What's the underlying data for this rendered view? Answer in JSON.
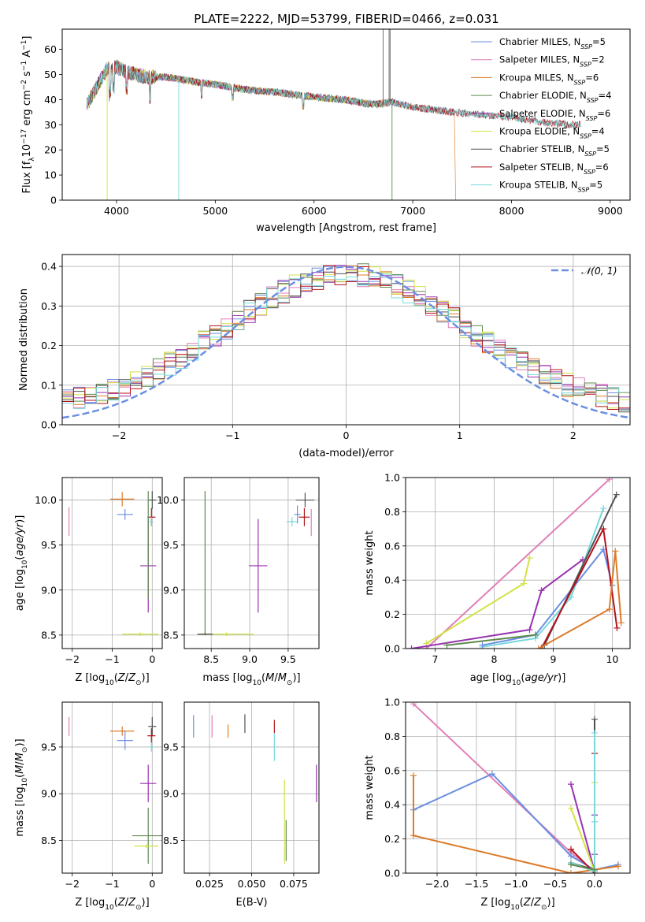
{
  "title": "PLATE=2222, MJD=53799, FIBERID=0466, z=0.031",
  "colors": {
    "Chabrier MILES": "#6b8fe0",
    "Salpeter MILES": "#e07fb8",
    "Kroupa MILES": "#dd7b28",
    "Chabrier ELODIE": "#5f8a4e",
    "Salpeter ELODIE": "#9832b0",
    "Kroupa ELODIE": "#d2e246",
    "Chabrier STELIB": "#505050",
    "Salpeter STELIB": "#b5121b",
    "Kroupa STELIB": "#78d8dc"
  },
  "chart_data": [
    {
      "type": "line",
      "id": "spectrum",
      "title": "PLATE=2222, MJD=53799, FIBERID=0466, z=0.031",
      "xlabel": "wavelength [Angstrom, rest frame]",
      "ylabel": "Flux [f_λ10^-17 erg cm^-2 s^-1 A^-1]",
      "xlim": [
        3450,
        9200
      ],
      "ylim": [
        0,
        68
      ],
      "xticks": [
        "4000",
        "5000",
        "6000",
        "7000",
        "8000",
        "9000"
      ],
      "yticks": [
        "0",
        "10",
        "20",
        "30",
        "40",
        "50",
        "60"
      ],
      "grid": false,
      "legend_position": "upper right",
      "legend": [
        {
          "name": "Chabrier MILES",
          "label": "Chabrier MILES, N",
          "nssp": "=5"
        },
        {
          "name": "Salpeter MILES",
          "label": "Salpeter MILES, N",
          "nssp": "=2"
        },
        {
          "name": "Kroupa MILES",
          "label": "Kroupa MILES, N",
          "nssp": "=6"
        },
        {
          "name": "Chabrier ELODIE",
          "label": "Chabrier ELODIE, N",
          "nssp": "=4"
        },
        {
          "name": "Salpeter ELODIE",
          "label": "Salpeter ELODIE, N",
          "nssp": "=6"
        },
        {
          "name": "Kroupa ELODIE",
          "label": "Kroupa ELODIE, N",
          "nssp": "=4"
        },
        {
          "name": "Chabrier STELIB",
          "label": "Chabrier STELIB, N",
          "nssp": "=5"
        },
        {
          "name": "Salpeter STELIB",
          "label": "Salpeter STELIB, N",
          "nssp": "=6"
        },
        {
          "name": "Kroupa STELIB",
          "label": "Kroupa STELIB, N",
          "nssp": "=5"
        }
      ],
      "continuum": {
        "x": [
          3700,
          3800,
          3900,
          4000,
          4100,
          4300,
          4500,
          4800,
          5000,
          5300,
          5600,
          6000,
          6300,
          6600,
          6800,
          7000,
          7200,
          7400,
          7700,
          8000,
          8300,
          8600,
          8700
        ],
        "y": [
          38,
          45,
          52,
          53,
          51,
          49,
          49,
          47,
          46,
          44,
          43,
          41,
          40,
          38,
          39,
          37,
          36,
          35,
          34,
          33,
          31,
          30,
          30
        ]
      },
      "end_wavelengths": {
        "MILES": 7420,
        "ELODIE": 6800,
        "STELIB": 8700
      }
    },
    {
      "type": "step",
      "id": "residual-histogram",
      "xlabel": "(data-model)/error",
      "ylabel": "Normed distribution",
      "xlim": [
        -2.5,
        2.5
      ],
      "ylim": [
        0,
        0.43
      ],
      "xticks": [
        "−2",
        "−1",
        "0",
        "1",
        "2"
      ],
      "yticks": [
        "0.0",
        "0.1",
        "0.2",
        "0.3",
        "0.4"
      ],
      "grid": true,
      "bins": 50,
      "legend": "𝒩(0, 1)",
      "legend_position": "upper right",
      "normal_curve": {
        "mean": 0,
        "sigma": 1,
        "color": "#6b8fe0"
      }
    },
    {
      "type": "errorbar",
      "id": "age-vs-Z",
      "xlabel": "Z [log10(Z/Z⊙)]",
      "ylabel": "age [log10(age/yr)]",
      "xlim": [
        -2.25,
        0.25
      ],
      "ylim": [
        8.35,
        10.25
      ],
      "xticks": [
        "−2",
        "−1",
        "0"
      ],
      "yticks": [
        "8.5",
        "9.0",
        "9.5",
        "10.0"
      ],
      "grid": true,
      "points": [
        {
          "model": "Salpeter MILES",
          "x": -2.08,
          "y": 9.76,
          "xerr": 0,
          "yerr": 0.16
        },
        {
          "model": "Kroupa MILES",
          "x": -0.75,
          "y": 10.01,
          "xerr": 0.3,
          "yerr": 0.08
        },
        {
          "model": "Chabrier MILES",
          "x": -0.68,
          "y": 9.84,
          "xerr": 0.2,
          "yerr": 0.06
        },
        {
          "model": "Chabrier STELIB",
          "x": 0.0,
          "y": 10.0,
          "xerr": 0.1,
          "yerr": 0.1
        },
        {
          "model": "Salpeter STELIB",
          "x": -0.02,
          "y": 9.81,
          "xerr": 0.1,
          "yerr": 0.1
        },
        {
          "model": "Kroupa STELIB",
          "x": -0.02,
          "y": 9.76,
          "xerr": 0.05,
          "yerr": 0.05
        },
        {
          "model": "Salpeter ELODIE",
          "x": -0.1,
          "y": 9.27,
          "xerr": 0.2,
          "yerr": 0.52
        },
        {
          "model": "Chabrier ELODIE",
          "x": -0.1,
          "y": 9.5,
          "xerr": 0.01,
          "yerr": 0.6
        },
        {
          "model": "Kroupa ELODIE",
          "x": -0.3,
          "y": 8.51,
          "xerr": 0.45,
          "yerr": 0.02
        }
      ]
    },
    {
      "type": "errorbar",
      "id": "age-vs-mass",
      "xlabel": "mass [log10(M/M⊙)]",
      "ylabel": "",
      "xlim": [
        8.15,
        9.9
      ],
      "ylim": [
        8.35,
        10.25
      ],
      "xticks": [
        "8.5",
        "9.0",
        "9.5"
      ],
      "yticks": [
        "8.5",
        "9.0",
        "9.5",
        "10.0"
      ],
      "grid": true,
      "points": [
        {
          "model": "Chabrier ELODIE",
          "x": 8.42,
          "y": 9.3,
          "xerr": 0,
          "yerr": 0.8
        },
        {
          "model": "Kroupa ELODIE",
          "x": 8.7,
          "y": 8.51,
          "xerr": 0.35,
          "yerr": 0.02
        },
        {
          "model": "Chabrier STELIB",
          "x": 8.42,
          "y": 8.51,
          "xerr": 0.1,
          "yerr": 0.01
        },
        {
          "model": "Salpeter ELODIE",
          "x": 9.11,
          "y": 9.27,
          "xerr": 0.12,
          "yerr": 0.52
        },
        {
          "model": "Kroupa STELIB",
          "x": 9.55,
          "y": 9.76,
          "xerr": 0.07,
          "yerr": 0.05
        },
        {
          "model": "Chabrier MILES",
          "x": 9.62,
          "y": 9.84,
          "xerr": 0.04,
          "yerr": 0.1
        },
        {
          "model": "Salpeter STELIB",
          "x": 9.71,
          "y": 9.81,
          "xerr": 0.07,
          "yerr": 0.1
        },
        {
          "model": "Chabrier STELIB",
          "x": 9.72,
          "y": 10.0,
          "xerr": 0.12,
          "yerr": 0.08
        },
        {
          "model": "Salpeter MILES",
          "x": 9.8,
          "y": 9.75,
          "xerr": 0,
          "yerr": 0.15
        }
      ]
    },
    {
      "type": "line",
      "id": "mass-weight-vs-age",
      "xlabel": "age [log10(age/yr)]",
      "ylabel": "mass weight",
      "xlim": [
        6.5,
        10.3
      ],
      "ylim": [
        0,
        1
      ],
      "xticks": [
        "7",
        "8",
        "9",
        "10"
      ],
      "yticks": [
        "0.0",
        "0.2",
        "0.4",
        "0.6",
        "0.8",
        "1.0"
      ],
      "grid": true,
      "series": [
        {
          "model": "Salpeter MILES",
          "x": [
            6.85,
            9.95
          ],
          "y": [
            0.0,
            0.99
          ]
        },
        {
          "model": "Kroupa ELODIE",
          "x": [
            6.85,
            8.5,
            8.6
          ],
          "y": [
            0.03,
            0.38,
            0.53
          ]
        },
        {
          "model": "Kroupa STELIB",
          "x": [
            7.8,
            8.7,
            9.3,
            9.85
          ],
          "y": [
            0.01,
            0.06,
            0.3,
            0.82
          ]
        },
        {
          "model": "Salpeter ELODIE",
          "x": [
            6.6,
            8.6,
            8.8,
            9.5
          ],
          "y": [
            0.0,
            0.11,
            0.34,
            0.52
          ]
        },
        {
          "model": "Chabrier MILES",
          "x": [
            7.8,
            8.7,
            9.85,
            10.0
          ],
          "y": [
            0.02,
            0.08,
            0.58,
            0.37
          ]
        },
        {
          "model": "Chabrier STELIB",
          "x": [
            8.85,
            10.07
          ],
          "y": [
            0.02,
            0.9
          ]
        },
        {
          "model": "Salpeter STELIB",
          "x": [
            8.8,
            9.85,
            10.08
          ],
          "y": [
            0.0,
            0.7,
            0.12
          ]
        },
        {
          "model": "Kroupa MILES",
          "x": [
            8.75,
            9.95,
            10.05,
            10.15
          ],
          "y": [
            0.0,
            0.23,
            0.57,
            0.15
          ]
        },
        {
          "model": "Chabrier ELODIE",
          "x": [
            7.2,
            8.7
          ],
          "y": [
            0.02,
            0.08
          ]
        }
      ]
    },
    {
      "type": "errorbar",
      "id": "mass-vs-Z",
      "xlabel": "Z [log10(Z/Z⊙)]",
      "ylabel": "mass [log10(M/M⊙)]",
      "xlim": [
        -2.25,
        0.25
      ],
      "ylim": [
        8.15,
        9.98
      ],
      "xticks": [
        "−2",
        "−1",
        "0"
      ],
      "yticks": [
        "8.5",
        "9.0",
        "9.5"
      ],
      "grid": true,
      "points": [
        {
          "model": "Salpeter MILES",
          "x": -2.08,
          "y": 9.72,
          "xerr": 0,
          "yerr": 0.1
        },
        {
          "model": "Kroupa MILES",
          "x": -0.75,
          "y": 9.67,
          "xerr": 0.3,
          "yerr": 0.05
        },
        {
          "model": "Chabrier MILES",
          "x": -0.68,
          "y": 9.57,
          "xerr": 0.2,
          "yerr": 0.1
        },
        {
          "model": "Chabrier STELIB",
          "x": 0.0,
          "y": 9.72,
          "xerr": 0.1,
          "yerr": 0.1
        },
        {
          "model": "Salpeter STELIB",
          "x": -0.02,
          "y": 9.62,
          "xerr": 0.1,
          "yerr": 0.08
        },
        {
          "model": "Kroupa STELIB",
          "x": -0.02,
          "y": 9.5,
          "xerr": 0.05,
          "yerr": 0.05
        },
        {
          "model": "Salpeter ELODIE",
          "x": -0.1,
          "y": 9.11,
          "xerr": 0.2,
          "yerr": 0.2
        },
        {
          "model": "Chabrier ELODIE",
          "x": -0.1,
          "y": 8.55,
          "xerr": 0.4,
          "yerr": 0.3
        },
        {
          "model": "Kroupa ELODIE",
          "x": -0.15,
          "y": 8.44,
          "xerr": 0.3,
          "yerr": 0.02
        }
      ]
    },
    {
      "type": "errorbar",
      "id": "mass-vs-ebv",
      "xlabel": "E(B-V)",
      "ylabel": "",
      "xlim": [
        0.01,
        0.09
      ],
      "ylim": [
        8.15,
        9.98
      ],
      "xticks": [
        "0.025",
        "0.050",
        "0.075"
      ],
      "yticks": [
        "8.5",
        "9.0",
        "9.5"
      ],
      "grid": true,
      "points": [
        {
          "model": "Chabrier MILES",
          "x": 0.0155,
          "y": 9.72,
          "xerr": 0,
          "yerr": 0.12
        },
        {
          "model": "Salpeter MILES",
          "x": 0.0265,
          "y": 9.72,
          "xerr": 0,
          "yerr": 0.12
        },
        {
          "model": "Kroupa MILES",
          "x": 0.036,
          "y": 9.67,
          "xerr": 0,
          "yerr": 0.07
        },
        {
          "model": "Chabrier STELIB",
          "x": 0.046,
          "y": 9.75,
          "xerr": 0,
          "yerr": 0.1
        },
        {
          "model": "Salpeter STELIB",
          "x": 0.0635,
          "y": 9.72,
          "xerr": 0,
          "yerr": 0.07
        },
        {
          "model": "Kroupa STELIB",
          "x": 0.0635,
          "y": 9.5,
          "xerr": 0,
          "yerr": 0.15
        },
        {
          "model": "Kroupa ELODIE",
          "x": 0.0695,
          "y": 8.7,
          "xerr": 0,
          "yerr": 0.45
        },
        {
          "model": "Chabrier ELODIE",
          "x": 0.0705,
          "y": 8.5,
          "xerr": 0,
          "yerr": 0.22
        },
        {
          "model": "Salpeter ELODIE",
          "x": 0.0885,
          "y": 9.11,
          "xerr": 0,
          "yerr": 0.2
        }
      ]
    },
    {
      "type": "line",
      "id": "mass-weight-vs-Z",
      "xlabel": "Z [log10(Z/Z⊙)]",
      "ylabel": "mass weight",
      "xlim": [
        -2.4,
        0.45
      ],
      "ylim": [
        0,
        1
      ],
      "xticks": [
        "−2.0",
        "−1.5",
        "−1.0",
        "−0.5",
        "0.0"
      ],
      "yticks": [
        "0.0",
        "0.2",
        "0.4",
        "0.6",
        "0.8",
        "1.0"
      ],
      "grid": true,
      "series": [
        {
          "model": "Salpeter MILES",
          "x": [
            -2.3,
            -0.3,
            0.0
          ],
          "y": [
            0.99,
            0.12,
            0.01
          ]
        },
        {
          "model": "Chabrier MILES",
          "x": [
            -2.3,
            -1.3,
            -0.3,
            0.0,
            0.3
          ],
          "y": [
            0.37,
            0.58,
            0.1,
            0.02,
            0.05
          ]
        },
        {
          "model": "Kroupa MILES",
          "x": [
            -2.3,
            -2.3,
            -0.3,
            0.0,
            0.3
          ],
          "y": [
            0.57,
            0.22,
            0.0,
            0.02,
            0.04
          ]
        },
        {
          "model": "Salpeter ELODIE",
          "x": [
            -0.3,
            0.0,
            0.0,
            0.0
          ],
          "y": [
            0.52,
            0.01,
            0.11,
            0.34
          ]
        },
        {
          "model": "Kroupa ELODIE",
          "x": [
            -0.3,
            0.0,
            0.0
          ],
          "y": [
            0.38,
            0.01,
            0.53
          ]
        },
        {
          "model": "Chabrier STELIB",
          "x": [
            -0.3,
            0.0,
            0.0
          ],
          "y": [
            0.06,
            0.02,
            0.9
          ]
        },
        {
          "model": "Salpeter STELIB",
          "x": [
            -0.3,
            0.0,
            0.0
          ],
          "y": [
            0.14,
            0.0,
            0.7
          ]
        },
        {
          "model": "Kroupa STELIB",
          "x": [
            -0.3,
            0.0,
            0.0,
            0.0
          ],
          "y": [
            0.06,
            0.01,
            0.3,
            0.82
          ]
        },
        {
          "model": "Chabrier ELODIE",
          "x": [
            -0.3,
            0.0
          ],
          "y": [
            0.05,
            0.02
          ]
        }
      ]
    }
  ]
}
